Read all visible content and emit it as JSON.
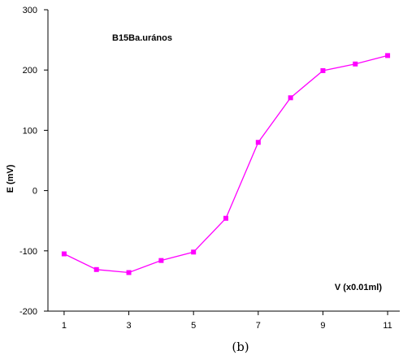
{
  "caption": "(b)",
  "chart_data": {
    "type": "line",
    "title": "",
    "annotation": "B15Ba.urános",
    "xlabel": "V (x0.01ml)",
    "ylabel": "E (mV)",
    "xlim": [
      0.5,
      11.5
    ],
    "ylim": [
      -200,
      300
    ],
    "xticks": [
      1,
      3,
      5,
      7,
      9,
      11
    ],
    "yticks": [
      -200,
      -100,
      0,
      100,
      200,
      300
    ],
    "grid": false,
    "color": "#FF00FF",
    "x": [
      1,
      2,
      3,
      4,
      5,
      6,
      7,
      8,
      9,
      10,
      11
    ],
    "y": [
      -105,
      -131,
      -136,
      -116,
      -102,
      -46,
      80,
      154,
      199,
      210,
      224
    ]
  }
}
